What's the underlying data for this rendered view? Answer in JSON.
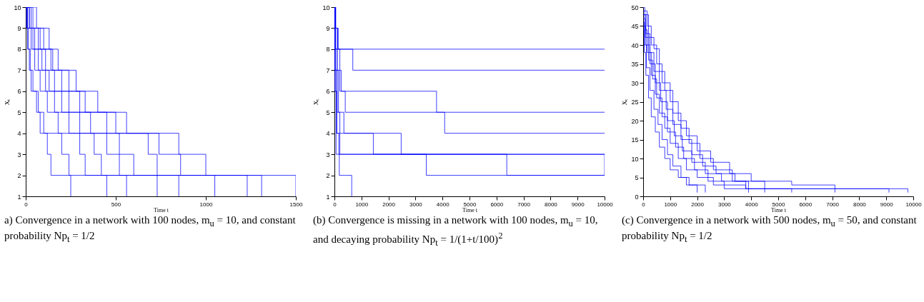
{
  "chart_data": [
    {
      "type": "step",
      "xlabel": "Time t",
      "ylabel": "Xₜ",
      "xlim": [
        0,
        1500
      ],
      "xticks": [
        0,
        500,
        1000,
        1500
      ],
      "ylim": [
        1,
        10
      ],
      "yticks": [
        1,
        2,
        3,
        4,
        5,
        6,
        7,
        8,
        9,
        10
      ],
      "annotations": [
        "a) Convergence in a network with 100 nodes, m$_{u}$ = 10, and constant probability Np$_{t}$ = 1/2"
      ],
      "series": [
        {
          "color": "#0000ff",
          "x": [
            0,
            60,
            130,
            150,
            240,
            330,
            560,
            850,
            1000,
            1500
          ],
          "values": [
            10,
            9,
            8,
            7,
            6,
            5,
            4,
            3,
            2,
            1
          ]
        },
        {
          "color": "#0000ff",
          "x": [
            0,
            40,
            100,
            180,
            280,
            400,
            500,
            740,
            860,
            1310
          ],
          "values": [
            10,
            9,
            8,
            7,
            6,
            5,
            4,
            3,
            2,
            1
          ]
        },
        {
          "color": "#0000ff",
          "x": [
            0,
            20,
            80,
            140,
            200,
            300,
            450,
            680,
            730,
            1230
          ],
          "values": [
            10,
            9,
            8,
            7,
            6,
            5,
            4,
            3,
            2,
            1
          ]
        },
        {
          "color": "#0000ff",
          "x": [
            0,
            30,
            70,
            110,
            160,
            240,
            360,
            520,
            600,
            1050
          ],
          "values": [
            10,
            9,
            8,
            7,
            6,
            5,
            4,
            3,
            2,
            1
          ]
        },
        {
          "color": "#0000ff",
          "x": [
            0,
            10,
            40,
            90,
            130,
            200,
            300,
            450,
            520,
            850
          ],
          "values": [
            10,
            9,
            8,
            7,
            6,
            5,
            4,
            3,
            2,
            1
          ]
        },
        {
          "color": "#0000ff",
          "x": [
            0,
            20,
            50,
            70,
            110,
            160,
            240,
            380,
            420,
            730
          ],
          "values": [
            10,
            9,
            8,
            7,
            6,
            5,
            4,
            3,
            2,
            1
          ]
        },
        {
          "color": "#0000ff",
          "x": [
            0,
            10,
            30,
            50,
            80,
            120,
            180,
            300,
            330,
            560
          ],
          "values": [
            10,
            9,
            8,
            7,
            6,
            5,
            4,
            3,
            2,
            1
          ]
        },
        {
          "color": "#0000ff",
          "x": [
            0,
            5,
            15,
            25,
            30,
            70,
            100,
            200,
            240,
            450
          ],
          "values": [
            10,
            9,
            8,
            7,
            6,
            5,
            4,
            3,
            2,
            1
          ]
        },
        {
          "color": "#0000ff",
          "x": [
            0,
            5,
            10,
            20,
            40,
            60,
            80,
            120,
            140,
            250
          ],
          "values": [
            10,
            9,
            8,
            7,
            6,
            5,
            4,
            3,
            2,
            1
          ]
        }
      ]
    },
    {
      "type": "step",
      "xlabel": "Time t",
      "ylabel": "Xₜ",
      "xlim": [
        0,
        10000
      ],
      "xticks": [
        0,
        1000,
        2000,
        3000,
        4000,
        5000,
        6000,
        7000,
        8000,
        9000,
        10000
      ],
      "ylim": [
        1,
        10
      ],
      "yticks": [
        1,
        2,
        3,
        4,
        5,
        6,
        7,
        8,
        9,
        10
      ],
      "annotations": [
        "(b) Convergence is missing in a network with 100 nodes, m$_{u}$ = 10, and decaying probability Np$_{t}$ = 1/(1+t/100)$^{2}$"
      ],
      "series": [
        {
          "color": "#0000ff",
          "x": [
            0,
            50,
            140,
            10000
          ],
          "values": [
            10,
            9,
            8,
            8
          ]
        },
        {
          "color": "#0000ff",
          "x": [
            0,
            40,
            120,
            680,
            10000
          ],
          "values": [
            10,
            9,
            8,
            7,
            7
          ]
        },
        {
          "color": "#0000ff",
          "x": [
            0,
            30,
            100,
            250,
            3780,
            10000
          ],
          "values": [
            10,
            9,
            7,
            6,
            5,
            5
          ]
        },
        {
          "color": "#0000ff",
          "x": [
            0,
            40,
            200,
            400,
            4080,
            10000
          ],
          "values": [
            10,
            8,
            6,
            5,
            4,
            4
          ]
        },
        {
          "color": "#0000ff",
          "x": [
            0,
            30,
            150,
            350,
            2470,
            10000
          ],
          "values": [
            10,
            7,
            5,
            4,
            3,
            3
          ]
        },
        {
          "color": "#0000ff",
          "x": [
            0,
            20,
            100,
            200,
            6380,
            10000
          ],
          "values": [
            10,
            8,
            5,
            3,
            2,
            2
          ]
        },
        {
          "color": "#0000ff",
          "x": [
            0,
            20,
            80,
            160,
            3400,
            10000
          ],
          "values": [
            10,
            7,
            4,
            3,
            2,
            2
          ]
        },
        {
          "color": "#0000ff",
          "x": [
            0,
            30,
            90,
            1440,
            10000
          ],
          "values": [
            10,
            6,
            4,
            3,
            2
          ]
        },
        {
          "color": "#0000ff",
          "x": [
            0,
            20,
            60,
            180,
            640
          ],
          "values": [
            10,
            6,
            3,
            2,
            1
          ]
        }
      ]
    },
    {
      "type": "step",
      "xlabel": "Time t",
      "ylabel": "Xₜ",
      "xlim": [
        0,
        10000
      ],
      "xticks": [
        0,
        1000,
        2000,
        3000,
        4000,
        5000,
        6000,
        7000,
        8000,
        9000,
        10000
      ],
      "ylim": [
        0,
        50
      ],
      "yticks": [
        0,
        5,
        10,
        15,
        20,
        25,
        30,
        35,
        40,
        45,
        50
      ],
      "annotations": [
        "(c) Convergence in a network with 500 nodes, m$_{u}$ = 50, and constant probability Np$_{t}$ = 1/2"
      ],
      "series": [
        {
          "color": "#0000ff",
          "x": [
            0,
            150,
            300,
            500,
            700,
            1000,
            1300,
            1600,
            2000,
            2500,
            3200,
            4000,
            5500,
            7100,
            9800
          ],
          "values": [
            49,
            45,
            40,
            35,
            30,
            25,
            20,
            16,
            12,
            9,
            6,
            4,
            3,
            2,
            1
          ]
        },
        {
          "color": "#0000ff",
          "x": [
            0,
            100,
            250,
            400,
            600,
            850,
            1100,
            1400,
            1800,
            2200,
            2700,
            3400,
            4500,
            9100
          ],
          "values": [
            48,
            43,
            38,
            33,
            28,
            23,
            19,
            15,
            11,
            8,
            6,
            4,
            2,
            1
          ]
        },
        {
          "color": "#0000ff",
          "x": [
            0,
            80,
            200,
            350,
            500,
            700,
            900,
            1200,
            1500,
            1900,
            2400,
            3000,
            7100
          ],
          "values": [
            47,
            42,
            36,
            31,
            26,
            21,
            17,
            13,
            10,
            7,
            4,
            2,
            1
          ]
        },
        {
          "color": "#0000ff",
          "x": [
            0,
            60,
            150,
            300,
            450,
            600,
            800,
            1000,
            1300,
            1600,
            2000,
            2600,
            3800,
            5500
          ],
          "values": [
            50,
            44,
            38,
            32,
            27,
            22,
            18,
            14,
            10,
            7,
            5,
            3,
            2,
            1
          ]
        },
        {
          "color": "#0000ff",
          "x": [
            0,
            50,
            120,
            250,
            400,
            550,
            700,
            900,
            1100,
            1400,
            1700,
            2300
          ],
          "values": [
            46,
            40,
            34,
            28,
            23,
            19,
            15,
            11,
            8,
            5,
            3,
            1
          ]
        },
        {
          "color": "#0000ff",
          "x": [
            0,
            100,
            250,
            450,
            650,
            900,
            1150,
            1450,
            1800,
            2300,
            2900,
            3800,
            4500
          ],
          "values": [
            45,
            40,
            35,
            30,
            25,
            20,
            16,
            12,
            9,
            6,
            4,
            2,
            1
          ]
        },
        {
          "color": "#0000ff",
          "x": [
            0,
            40,
            100,
            200,
            300,
            450,
            600,
            800,
            1000,
            1300,
            1600,
            2000
          ],
          "values": [
            44,
            38,
            32,
            26,
            21,
            17,
            13,
            10,
            7,
            5,
            3,
            1
          ]
        },
        {
          "color": "#0000ff",
          "x": [
            0,
            200,
            400,
            600,
            800,
            1100,
            1400,
            1700,
            2100,
            2600,
            3300,
            3900
          ],
          "values": [
            48,
            42,
            39,
            33,
            28,
            22,
            18,
            14,
            10,
            7,
            4,
            1
          ]
        }
      ]
    }
  ]
}
